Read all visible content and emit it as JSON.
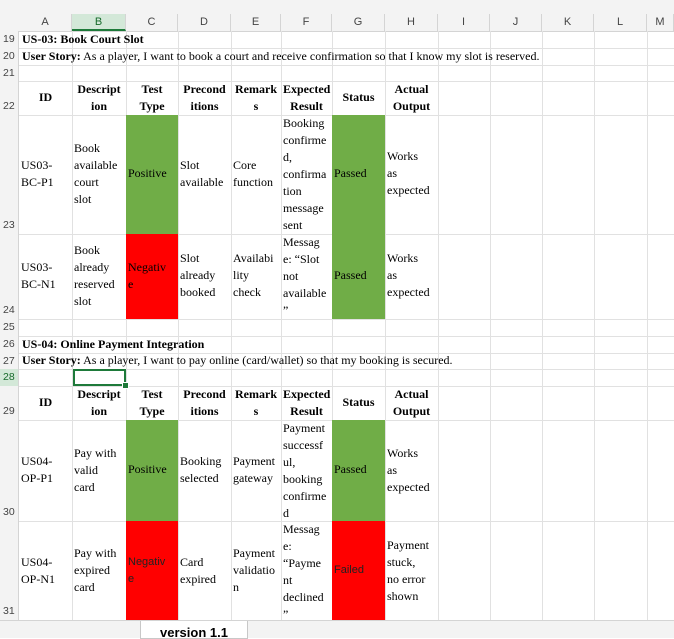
{
  "columns": [
    "A",
    "B",
    "C",
    "D",
    "E",
    "F",
    "G",
    "H",
    "I",
    "J",
    "K",
    "L",
    "M"
  ],
  "rows": [
    "19",
    "20",
    "21",
    "22",
    "23",
    "24",
    "25",
    "26",
    "27",
    "28",
    "29",
    "30",
    "31"
  ],
  "section1": {
    "title": "US-03: Book Court Slot",
    "story_label": "User Story:",
    "story_text": " As a player, I want to book a court and receive confirmation so that I know my slot is reserved."
  },
  "section2": {
    "title": "US-04: Online Payment Integration",
    "story_label": "User Story:",
    "story_text": " As a player, I want to pay online (card/wallet) so that my booking is secured."
  },
  "headers": {
    "id": "ID",
    "description": "Descript\nion",
    "test_type": "Test\nType",
    "preconditions": "Precond\nitions",
    "remarks": "Remark\ns",
    "expected": "Expected\nResult",
    "status": "Status",
    "actual": "Actual\nOutput"
  },
  "table1": [
    {
      "id": "US03-\nBC-P1",
      "description": "Book\navailable\ncourt\nslot",
      "test_type": "Positive",
      "preconditions": "Slot\navailable",
      "remarks": "Core\nfunction",
      "expected": "Booking\nconfirme\nd,\nconfirma\ntion\nmessage\nsent",
      "status": "Passed",
      "actual": "Works\nas\nexpected"
    },
    {
      "id": "US03-\nBC-N1",
      "description": "Book\nalready\nreserved\nslot",
      "test_type": "Negativ\ne",
      "preconditions": "Slot\nalready\nbooked",
      "remarks": "Availabi\nlity\ncheck",
      "expected": "Messag\ne: “Slot\nnot\navailable\n”",
      "status": "Passed",
      "actual": "Works\nas\nexpected"
    }
  ],
  "table2": [
    {
      "id": "US04-\nOP-P1",
      "description": "Pay with\nvalid\ncard",
      "test_type": "Positive",
      "preconditions": "Booking\nselected",
      "remarks": "Payment\ngateway",
      "expected": "Payment\nsuccessf\nul,\nbooking\nconfirme\nd",
      "status": "Passed",
      "actual": "Works\nas\nexpected"
    },
    {
      "id": "US04-\nOP-N1",
      "description": "Pay with\nexpired\ncard",
      "test_type": "Negativ\ne",
      "preconditions": "Card\nexpired",
      "remarks": "Payment\nvalidatio\nn",
      "expected": "Messag\ne:\n“Payme\nnt\ndeclined\n”",
      "status": "Failed",
      "actual": "Payment\nstuck,\nno error\nshown"
    }
  ],
  "sheet_tab": "version 1.1",
  "colors": {
    "pass": "#70ad47",
    "fail": "#ff0000",
    "accent": "#1e7a3a"
  }
}
